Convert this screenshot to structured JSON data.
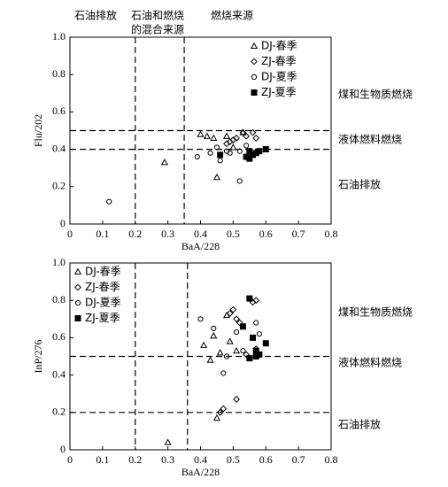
{
  "chart_data": [
    {
      "type": "scatter",
      "x_label": "BaA/228",
      "y_label": "Flu/202",
      "xlim": [
        0,
        0.8
      ],
      "ylim": [
        0,
        1
      ],
      "xticks": [
        0,
        0.1,
        0.2,
        0.3,
        0.4,
        0.5,
        0.6,
        0.7,
        0.8
      ],
      "yticks": [
        0,
        0.2,
        0.4,
        0.6,
        0.8,
        {
          "value": 1,
          "label": "1.0"
        }
      ],
      "vlines": [
        0.2,
        0.35
      ],
      "hlines": [
        0.5,
        0.4
      ],
      "legend": "upper right",
      "region_labels_top": [
        "石油排放",
        "石油和燃烧",
        "的混合来源",
        "燃烧来源"
      ],
      "region_labels_right": [
        "煤和生物质燃烧",
        "液体燃料燃烧",
        "石油排放"
      ],
      "series": [
        {
          "name": "DJ-春季",
          "color": "#000000",
          "marker": "triangle",
          "x": [
            0.29,
            0.4,
            0.42,
            0.44,
            0.45,
            0.48,
            0.5,
            0.53
          ],
          "y": [
            0.33,
            0.48,
            0.47,
            0.46,
            0.25,
            0.47,
            0.41,
            0.49
          ]
        },
        {
          "name": "ZJ-春季",
          "color": "#000000",
          "marker": "diamond",
          "x": [
            0.48,
            0.49,
            0.5,
            0.51,
            0.53,
            0.54,
            0.56,
            0.57
          ],
          "y": [
            0.43,
            0.44,
            0.45,
            0.46,
            0.49,
            0.47,
            0.49,
            0.46
          ]
        },
        {
          "name": "DJ-夏季",
          "color": "#000000",
          "marker": "circle",
          "x": [
            0.12,
            0.39,
            0.43,
            0.45,
            0.46,
            0.48,
            0.49,
            0.52,
            0.52,
            0.54
          ],
          "y": [
            0.12,
            0.36,
            0.38,
            0.41,
            0.34,
            0.39,
            0.38,
            0.23,
            0.39,
            0.42
          ]
        },
        {
          "name": "ZJ-夏季",
          "color": "#000000",
          "marker": "square",
          "x": [
            0.46,
            0.54,
            0.55,
            0.56,
            0.57,
            0.58,
            0.6,
            0.55
          ],
          "y": [
            0.37,
            0.36,
            0.35,
            0.37,
            0.38,
            0.39,
            0.4,
            0.39
          ]
        }
      ]
    },
    {
      "type": "scatter",
      "x_label": "BaA/228",
      "y_label": "InP/276",
      "xlim": [
        0,
        0.8
      ],
      "ylim": [
        0,
        1
      ],
      "xticks": [
        0,
        0.1,
        0.2,
        0.3,
        0.4,
        0.5,
        0.6,
        0.7,
        0.8
      ],
      "yticks": [
        0,
        0.2,
        0.4,
        0.6,
        0.8,
        {
          "value": 1,
          "label": "1.0"
        }
      ],
      "vlines": [
        0.2,
        0.36
      ],
      "hlines": [
        0.5,
        0.2
      ],
      "legend": "upper left",
      "region_labels_right": [
        "煤和生物质燃烧",
        "液体燃料燃烧",
        "石油排放"
      ],
      "series": [
        {
          "name": "DJ-春季",
          "color": "#000000",
          "marker": "triangle",
          "x": [
            0.3,
            0.41,
            0.43,
            0.44,
            0.45,
            0.46,
            0.48,
            0.49,
            0.51
          ],
          "y": [
            0.04,
            0.56,
            0.48,
            0.61,
            0.17,
            0.52,
            0.72,
            0.58,
            0.53
          ]
        },
        {
          "name": "ZJ-春季",
          "color": "#000000",
          "marker": "diamond",
          "x": [
            0.46,
            0.47,
            0.49,
            0.5,
            0.51,
            0.52,
            0.54,
            0.56,
            0.57,
            0.57,
            0.51
          ],
          "y": [
            0.2,
            0.22,
            0.73,
            0.75,
            0.7,
            0.68,
            0.51,
            0.79,
            0.8,
            0.54,
            0.27
          ]
        },
        {
          "name": "DJ-夏季",
          "color": "#000000",
          "marker": "circle",
          "x": [
            0.4,
            0.44,
            0.48,
            0.47,
            0.51,
            0.53,
            0.57,
            0.58
          ],
          "y": [
            0.7,
            0.65,
            0.5,
            0.41,
            0.63,
            0.53,
            0.68,
            0.62
          ]
        },
        {
          "name": "ZJ-夏季",
          "color": "#000000",
          "marker": "square",
          "x": [
            0.53,
            0.55,
            0.56,
            0.55,
            0.57,
            0.58,
            0.6,
            0.57
          ],
          "y": [
            0.66,
            0.81,
            0.6,
            0.49,
            0.53,
            0.51,
            0.57,
            0.5
          ]
        }
      ]
    }
  ]
}
